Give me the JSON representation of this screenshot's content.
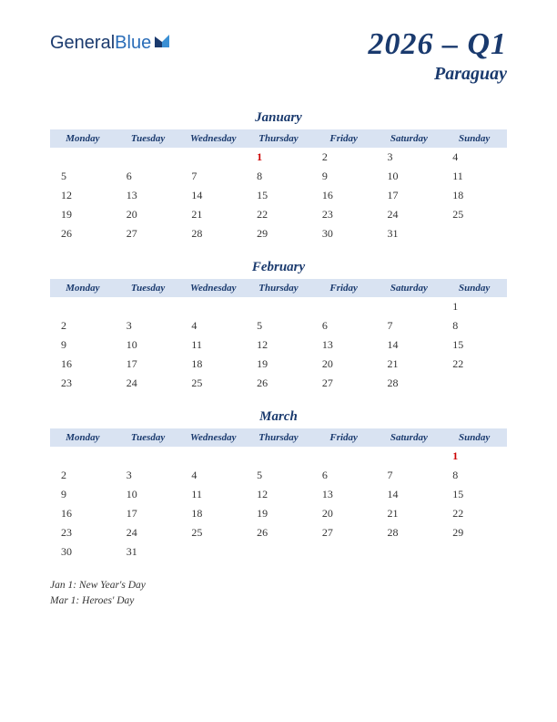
{
  "logo": {
    "text1": "General",
    "text2": "Blue"
  },
  "title": "2026 – Q1",
  "subtitle": "Paraguay",
  "colors": {
    "header_bg": "#d9e3f2",
    "heading_text": "#1a3a6e",
    "body_text": "#333333",
    "holiday_text": "#cc0000",
    "logo_accent": "#2a6db8"
  },
  "day_headers": [
    "Monday",
    "Tuesday",
    "Wednesday",
    "Thursday",
    "Friday",
    "Saturday",
    "Sunday"
  ],
  "months": [
    {
      "name": "January",
      "weeks": [
        [
          "",
          "",
          "",
          "1",
          "2",
          "3",
          "4"
        ],
        [
          "5",
          "6",
          "7",
          "8",
          "9",
          "10",
          "11"
        ],
        [
          "12",
          "13",
          "14",
          "15",
          "16",
          "17",
          "18"
        ],
        [
          "19",
          "20",
          "21",
          "22",
          "23",
          "24",
          "25"
        ],
        [
          "26",
          "27",
          "28",
          "29",
          "30",
          "31",
          ""
        ]
      ],
      "holidays_idx": [
        [
          0,
          3
        ]
      ]
    },
    {
      "name": "February",
      "weeks": [
        [
          "",
          "",
          "",
          "",
          "",
          "",
          "1"
        ],
        [
          "2",
          "3",
          "4",
          "5",
          "6",
          "7",
          "8"
        ],
        [
          "9",
          "10",
          "11",
          "12",
          "13",
          "14",
          "15"
        ],
        [
          "16",
          "17",
          "18",
          "19",
          "20",
          "21",
          "22"
        ],
        [
          "23",
          "24",
          "25",
          "26",
          "27",
          "28",
          ""
        ]
      ],
      "holidays_idx": []
    },
    {
      "name": "March",
      "weeks": [
        [
          "",
          "",
          "",
          "",
          "",
          "",
          "1"
        ],
        [
          "2",
          "3",
          "4",
          "5",
          "6",
          "7",
          "8"
        ],
        [
          "9",
          "10",
          "11",
          "12",
          "13",
          "14",
          "15"
        ],
        [
          "16",
          "17",
          "18",
          "19",
          "20",
          "21",
          "22"
        ],
        [
          "23",
          "24",
          "25",
          "26",
          "27",
          "28",
          "29"
        ],
        [
          "30",
          "31",
          "",
          "",
          "",
          "",
          ""
        ]
      ],
      "holidays_idx": [
        [
          0,
          6
        ]
      ]
    }
  ],
  "holiday_list": [
    "Jan 1: New Year's Day",
    "Mar 1: Heroes' Day"
  ]
}
